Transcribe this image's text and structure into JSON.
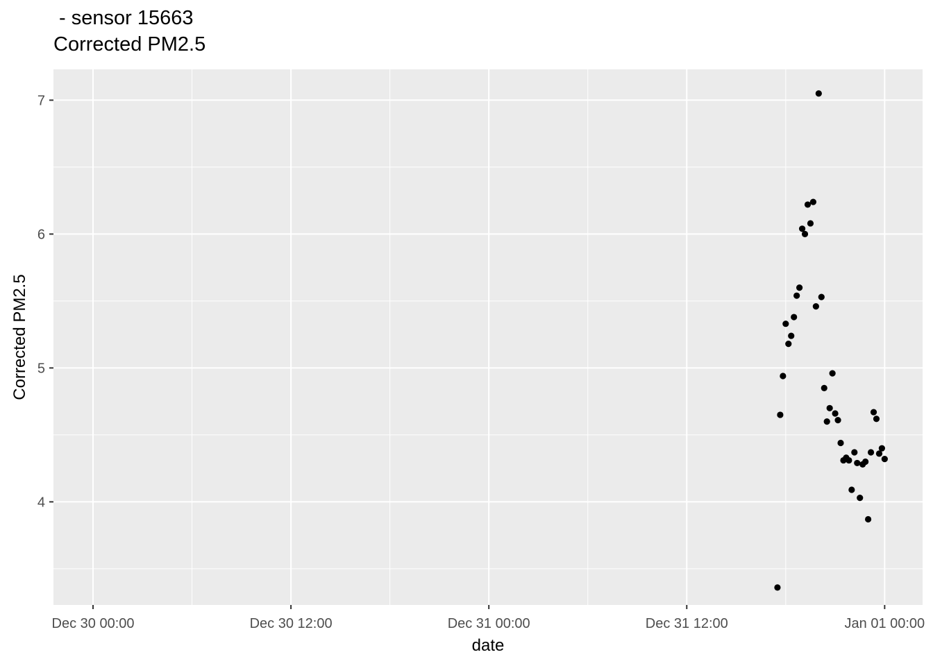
{
  "chart_data": {
    "type": "scatter",
    "title_line1": " - sensor 15663",
    "title_line2": "Corrected PM2.5",
    "xlabel": "date",
    "ylabel": "Corrected PM2.5",
    "x_tick_labels": [
      "Dec 30 00:00",
      "Dec 30 12:00",
      "Dec 31 00:00",
      "Dec 31 12:00",
      "Jan 01 00:00"
    ],
    "y_tick_labels": [
      "4",
      "5",
      "6",
      "7"
    ],
    "ylim": [
      3.23,
      7.23
    ],
    "xlim_hours": [
      -2.4,
      50.3
    ],
    "grid": true,
    "panel_background": "#EBEBEB",
    "grid_color": "#FFFFFF",
    "point_color": "#000000",
    "points": [
      {
        "x": "Dec 31 17:30",
        "y": 3.36
      },
      {
        "x": "Dec 31 17:40",
        "y": 4.65
      },
      {
        "x": "Dec 31 17:50",
        "y": 4.94
      },
      {
        "x": "Dec 31 18:00",
        "y": 5.33
      },
      {
        "x": "Dec 31 18:10",
        "y": 5.18
      },
      {
        "x": "Dec 31 18:20",
        "y": 5.24
      },
      {
        "x": "Dec 31 18:30",
        "y": 5.38
      },
      {
        "x": "Dec 31 18:40",
        "y": 5.54
      },
      {
        "x": "Dec 31 18:50",
        "y": 5.6
      },
      {
        "x": "Dec 31 19:00",
        "y": 6.04
      },
      {
        "x": "Dec 31 19:10",
        "y": 6.0
      },
      {
        "x": "Dec 31 19:20",
        "y": 6.22
      },
      {
        "x": "Dec 31 19:30",
        "y": 6.08
      },
      {
        "x": "Dec 31 19:40",
        "y": 6.24
      },
      {
        "x": "Dec 31 19:50",
        "y": 5.46
      },
      {
        "x": "Dec 31 20:00",
        "y": 7.05
      },
      {
        "x": "Dec 31 20:10",
        "y": 5.53
      },
      {
        "x": "Dec 31 20:20",
        "y": 4.85
      },
      {
        "x": "Dec 31 20:30",
        "y": 4.6
      },
      {
        "x": "Dec 31 20:40",
        "y": 4.7
      },
      {
        "x": "Dec 31 20:50",
        "y": 4.96
      },
      {
        "x": "Dec 31 21:00",
        "y": 4.66
      },
      {
        "x": "Dec 31 21:10",
        "y": 4.61
      },
      {
        "x": "Dec 31 21:20",
        "y": 4.44
      },
      {
        "x": "Dec 31 21:30",
        "y": 4.31
      },
      {
        "x": "Dec 31 21:40",
        "y": 4.33
      },
      {
        "x": "Dec 31 21:50",
        "y": 4.31
      },
      {
        "x": "Dec 31 22:00",
        "y": 4.09
      },
      {
        "x": "Dec 31 22:10",
        "y": 4.37
      },
      {
        "x": "Dec 31 22:20",
        "y": 4.29
      },
      {
        "x": "Dec 31 22:30",
        "y": 4.03
      },
      {
        "x": "Dec 31 22:40",
        "y": 4.28
      },
      {
        "x": "Dec 31 22:50",
        "y": 4.3
      },
      {
        "x": "Dec 31 23:00",
        "y": 3.87
      },
      {
        "x": "Dec 31 23:10",
        "y": 4.37
      },
      {
        "x": "Dec 31 23:20",
        "y": 4.67
      },
      {
        "x": "Dec 31 23:30",
        "y": 4.62
      },
      {
        "x": "Dec 31 23:40",
        "y": 4.36
      },
      {
        "x": "Dec 31 23:50",
        "y": 4.4
      },
      {
        "x": "Jan 01 00:00",
        "y": 4.32
      }
    ]
  }
}
